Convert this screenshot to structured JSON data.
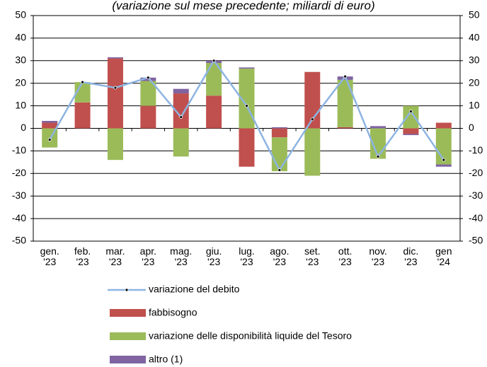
{
  "chart_data": {
    "type": "bar",
    "title": "(variazione sul mese precedente; miliardi di euro)",
    "categories": [
      "gen.\n'23",
      "feb.\n'23",
      "mar.\n'23",
      "apr.\n'23",
      "mag.\n'23",
      "giu.\n'23",
      "lug.\n'23",
      "ago.\n'23",
      "set.\n'23",
      "ott.\n'23",
      "nov.\n'23",
      "dic.\n'23",
      "gen\n'24"
    ],
    "series": [
      {
        "name": "variazione del debito",
        "type": "line",
        "color": "#8db4e2",
        "values": [
          -5,
          20.5,
          18,
          22.5,
          5,
          30,
          10,
          -18.5,
          4,
          23,
          -12.5,
          7.5,
          -14
        ]
      },
      {
        "name": "fabbisogno",
        "type": "bar",
        "color": "#c0504d",
        "values": [
          2.5,
          11.5,
          31,
          10,
          15.5,
          14.5,
          -17,
          -4,
          25,
          0.5,
          0,
          -2.5,
          2.5
        ]
      },
      {
        "name": "variazione delle disponibilità liquide del Tesoro",
        "type": "bar",
        "color": "#9bbb59",
        "values": [
          -8.5,
          9,
          -14,
          11,
          -12.5,
          14.5,
          26.5,
          -15,
          -21,
          21,
          -13.5,
          10,
          -16
        ]
      },
      {
        "name": "altro (1)",
        "type": "bar",
        "color": "#8064a2",
        "values": [
          0.8,
          0,
          0.5,
          1.5,
          2,
          1,
          0.5,
          0.5,
          0,
          1.5,
          1,
          -0.5,
          -1
        ]
      }
    ],
    "ylim": [
      -50,
      50
    ],
    "yticks": [
      -50,
      -40,
      -30,
      -20,
      -10,
      0,
      10,
      20,
      30,
      40,
      50
    ],
    "y2lim": [
      -50,
      50
    ],
    "y2ticks": [
      -50,
      -40,
      -30,
      -20,
      -10,
      0,
      10,
      20,
      30,
      40,
      50
    ],
    "grid": true
  }
}
